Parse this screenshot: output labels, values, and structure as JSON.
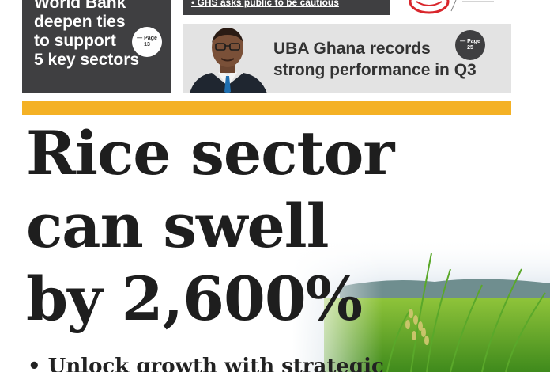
{
  "teaser_left": {
    "lines": [
      "World Bank",
      "deepen ties",
      "to support",
      "5 key sectors"
    ],
    "page_ref": {
      "dash": "— Page",
      "number": "13"
    }
  },
  "ghs_strip": {
    "text": "• GHS asks public to be cautious"
  },
  "teaser_right": {
    "lines": [
      "UBA Ghana records",
      "strong performance in Q3"
    ],
    "page_ref": {
      "dash": "— Page",
      "number": "25"
    }
  },
  "headline": {
    "lines": [
      "Rice sector",
      "can swell",
      "by 2,600%"
    ]
  },
  "bullet": {
    "text": "• Unlock growth with strategic"
  },
  "colors": {
    "dark_panel": "#3f3f41",
    "accent_yellow": "#f4b125",
    "light_panel": "#e3e3e3",
    "logo_red": "#d9262c"
  },
  "icons": {
    "logo": "newspaper-logo-icon",
    "photo": "rice-field-photo"
  }
}
